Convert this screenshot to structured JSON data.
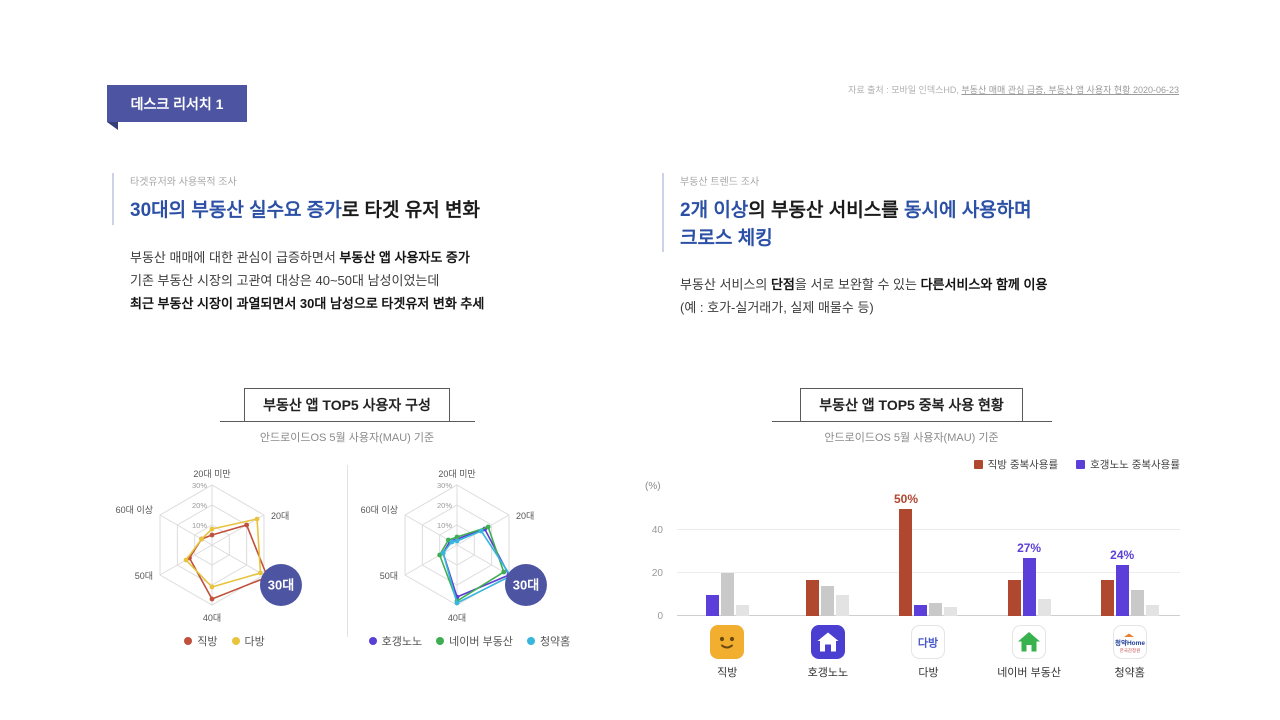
{
  "ui": {
    "accent_purple": "#4d55a2",
    "heading_blue": "#2b50a5"
  },
  "header": {
    "badge": "데스크 리서치 1",
    "source_prefix": "자료 출처 : 모바일 인덱스HD, ",
    "source_link": "부동산 매매 관심 급증, 부동산 앱 사용자 현황 2020-06-23"
  },
  "left_section": {
    "label": "타겟유저와 사용목적 조사",
    "title": {
      "highlight": "30대의 부동산 실수요 증가",
      "rest": "로 타겟 유저 변화"
    },
    "body": {
      "l1a": "부동산 매매에 대한 관심이 급증하면서 ",
      "l1b": "부동산 앱 사용자도 증가",
      "l2": "기존 부동산 시장의 고관여 대상은 40~50대 남성이었는데",
      "l3": "최근 부동산 시장이 과열되면서 30대 남성으로 타겟유저 변화 추세"
    }
  },
  "right_section": {
    "label": "부동산 트렌드 조사",
    "title": {
      "hl1": "2개 이상",
      "mid": "의 부동산 서비스를 ",
      "hl2": "동시에 사용하며",
      "hl3": "크로스 체킹"
    },
    "body": {
      "l1a": "부동산 서비스의 ",
      "l1b": "단점",
      "l1c": "을 서로 보완할 수 있는 ",
      "l1d": "다른서비스와 함께 이용",
      "l2": "(예 : 호가-실거래가, 실제 매물수 등)"
    }
  },
  "chart_data": [
    {
      "type": "radar",
      "title": "부동산 앱 TOP5 사용자 구성",
      "subtitle": "안드로이드OS 5월 사용자(MAU) 기준",
      "axes": [
        "20대 미만",
        "20대",
        "30대",
        "40대",
        "50대",
        "60대 이상"
      ],
      "rings": [
        10,
        20,
        30
      ],
      "ring_labels": [
        "10%",
        "20%",
        "30%"
      ],
      "highlight": "30대",
      "charts": [
        {
          "series": [
            {
              "name": "직방",
              "color": "#c0513b",
              "values": [
                5,
                20,
                32,
                27,
                13,
                6
              ]
            },
            {
              "name": "다방",
              "color": "#e7c33e",
              "values": [
                8,
                26,
                28,
                21,
                15,
                6
              ]
            }
          ]
        },
        {
          "series": [
            {
              "name": "호갱노노",
              "color": "#5a3fd6",
              "values": [
                3,
                16,
                30,
                26,
                8,
                4
              ]
            },
            {
              "name": "네이버 부동산",
              "color": "#3fae52",
              "values": [
                4,
                18,
                27,
                28,
                10,
                5
              ]
            },
            {
              "name": "청약홈",
              "color": "#38b5dd",
              "values": [
                2,
                14,
                31,
                29,
                8,
                3
              ]
            }
          ]
        }
      ]
    },
    {
      "type": "bar",
      "title": "부동산 앱 TOP5 중복 사용 현황",
      "subtitle": "안드로이드OS 5월 사용자(MAU) 기준",
      "unit": "(%)",
      "yticks": [
        0,
        20,
        40
      ],
      "ymax": 55,
      "legend": [
        {
          "label": "직방 중복사용률",
          "color": "#b0472f"
        },
        {
          "label": "호갱노노 중복사용률",
          "color": "#5b3fd8"
        }
      ],
      "groups": [
        {
          "app": "직방",
          "bars": [
            {
              "v": 10,
              "c": "#5b3fd8"
            },
            {
              "v": 20,
              "c": "#c9c9c9"
            },
            {
              "v": 5,
              "c": "#e3e3e3"
            }
          ]
        },
        {
          "app": "호갱노노",
          "bars": [
            {
              "v": 17,
              "c": "#b0472f"
            },
            {
              "v": 14,
              "c": "#c9c9c9"
            },
            {
              "v": 10,
              "c": "#e3e3e3"
            }
          ]
        },
        {
          "app": "다방",
          "icon_text": "다방",
          "bars": [
            {
              "v": 50,
              "c": "#b0472f",
              "label": "50%",
              "hatch": true
            },
            {
              "v": 5,
              "c": "#5b3fd8"
            },
            {
              "v": 6,
              "c": "#c9c9c9"
            },
            {
              "v": 4,
              "c": "#e3e3e3"
            }
          ]
        },
        {
          "app": "네이버 부동산",
          "bars": [
            {
              "v": 17,
              "c": "#b0472f"
            },
            {
              "v": 27,
              "c": "#5b3fd8",
              "label": "27%"
            },
            {
              "v": 8,
              "c": "#e3e3e3"
            }
          ]
        },
        {
          "app": "청약홈",
          "icon_text": "청약Home",
          "icon_subtext": "한국감정원",
          "bars": [
            {
              "v": 17,
              "c": "#b0472f"
            },
            {
              "v": 24,
              "c": "#5b3fd8",
              "label": "24%"
            },
            {
              "v": 12,
              "c": "#c9c9c9"
            },
            {
              "v": 5,
              "c": "#e3e3e3"
            }
          ]
        }
      ]
    }
  ]
}
